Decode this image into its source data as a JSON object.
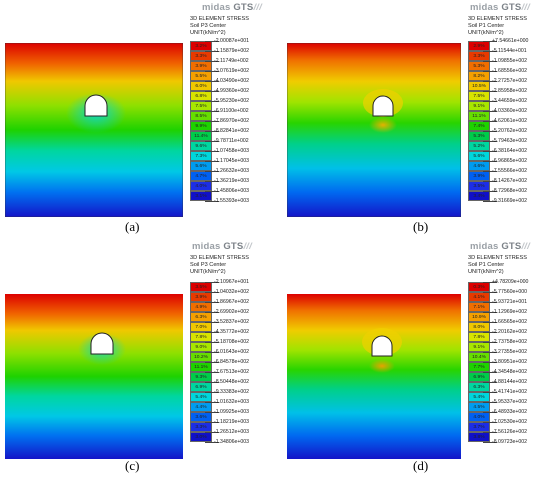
{
  "brand": {
    "thin": "midas",
    "bold": "GTS",
    "slashes": "///"
  },
  "panels": [
    {
      "id": "a",
      "caption": "(a)",
      "legend_title": "3D ELEMENT STRESS",
      "legend_sub": "Soil P3 Center",
      "legend_unit": "UNIT(kN/m^2)",
      "percents": [
        "3.2%",
        "3.3%",
        "3.9%",
        "5.5%",
        "6.0%",
        "6.8%",
        "7.5%",
        "8.5%",
        "9.9%",
        "11.4%",
        "9.6%",
        "7.3%",
        "5.6%",
        "4.7%",
        "4.0%",
        "3.1%"
      ],
      "values": [
        "-2.00087e+001",
        "-1.15879e+002",
        "-2.11749e+002",
        "-3.07619e+002",
        "-4.03490e+002",
        "-4.99360e+002",
        "-5.95230e+002",
        "-6.91100e+002",
        "-7.86970e+002",
        "-8.82841e+002",
        "-9.78711e+002",
        "-1.07458e+003",
        "-1.17045e+003",
        "-1.26632e+003",
        "-1.36219e+003",
        "-1.45806e+003",
        "-1.55393e+003"
      ]
    },
    {
      "id": "b",
      "caption": "(b)",
      "legend_title": "3D ELEMENT STRESS",
      "legend_sub": "Soil P1 Center",
      "legend_unit": "UNIT(kN/m^2)",
      "percents": [
        "2.9%",
        "3.3%",
        "5.3%",
        "8.2%",
        "10.5%",
        "7.5%",
        "9.1%",
        "11.1%",
        "7.4%",
        "5.3%",
        "5.2%",
        "5.6%",
        "4.6%",
        "3.9%",
        "3.5%",
        "3.4%"
      ],
      "values": [
        "+7.54661e+000",
        "-5.11544e+001",
        "-1.09855e+002",
        "-1.68556e+002",
        "-2.27257e+002",
        "-2.85958e+002",
        "-3.44659e+002",
        "-4.03360e+002",
        "-4.62061e+002",
        "-5.20762e+002",
        "-5.79463e+002",
        "-6.38164e+002",
        "-6.96865e+002",
        "-7.55566e+002",
        "-8.14267e+002",
        "-8.72968e+002",
        "-9.31669e+002"
      ]
    },
    {
      "id": "c",
      "caption": "(c)",
      "legend_title": "3D ELEMENT STRESS",
      "legend_sub": "Soil P3 Center",
      "legend_unit": "UNIT(kN/m^2)",
      "percents": [
        "3.5%",
        "3.9%",
        "4.9%",
        "6.3%",
        "7.0%",
        "7.8%",
        "9.0%",
        "10.2%",
        "11.1%",
        "9.3%",
        "6.9%",
        "5.4%",
        "4.4%",
        "3.6%",
        "3.3%",
        "3.0%"
      ],
      "values": [
        "-2.10967e+001",
        "-1.04032e+002",
        "-1.86967e+002",
        "-2.69902e+002",
        "-3.52837e+002",
        "-4.35772e+002",
        "-5.18708e+002",
        "-6.01643e+002",
        "-6.84578e+002",
        "-7.67513e+002",
        "-8.50448e+002",
        "-9.33383e+002",
        "-1.01632e+003",
        "-1.09925e+003",
        "-1.18219e+003",
        "-1.26512e+003",
        "-1.34806e+003"
      ]
    },
    {
      "id": "d",
      "caption": "(d)",
      "legend_title": "3D ELEMENT STRESS",
      "legend_sub": "Soil P1 Center",
      "legend_unit": "UNIT(kN/m^2)",
      "percents": [
        "0.3%",
        "4.1%",
        "7.1%",
        "10.9%",
        "8.0%",
        "7.8%",
        "9.1%",
        "10.4%",
        "7.7%",
        "6.9%",
        "6.3%",
        "5.4%",
        "4.5%",
        "4.0%",
        "3.7%",
        "3.8%"
      ],
      "values": [
        "+4.78209e+000",
        "-5.77560e+000",
        "-5.93721e+001",
        "-1.12969e+002",
        "-1.66565e+002",
        "-2.20162e+002",
        "-2.73758e+002",
        "-3.27355e+002",
        "-3.80951e+002",
        "-4.34548e+002",
        "-4.88144e+002",
        "-5.41741e+002",
        "-5.95337e+002",
        "-6.48933e+002",
        "-7.02530e+002",
        "-7.56126e+002",
        "-8.09723e+002"
      ]
    }
  ],
  "colors": {
    "scale": [
      "#dc0000",
      "#e83a00",
      "#f06e00",
      "#f5a000",
      "#f0c800",
      "#d8e400",
      "#a8e600",
      "#66de00",
      "#1ed200",
      "#00cc4a",
      "#00d6a0",
      "#00d6dc",
      "#009cf0",
      "#0060f2",
      "#1c2ee6",
      "#1010c8"
    ],
    "background": "#ffffff",
    "text": "#222222"
  }
}
